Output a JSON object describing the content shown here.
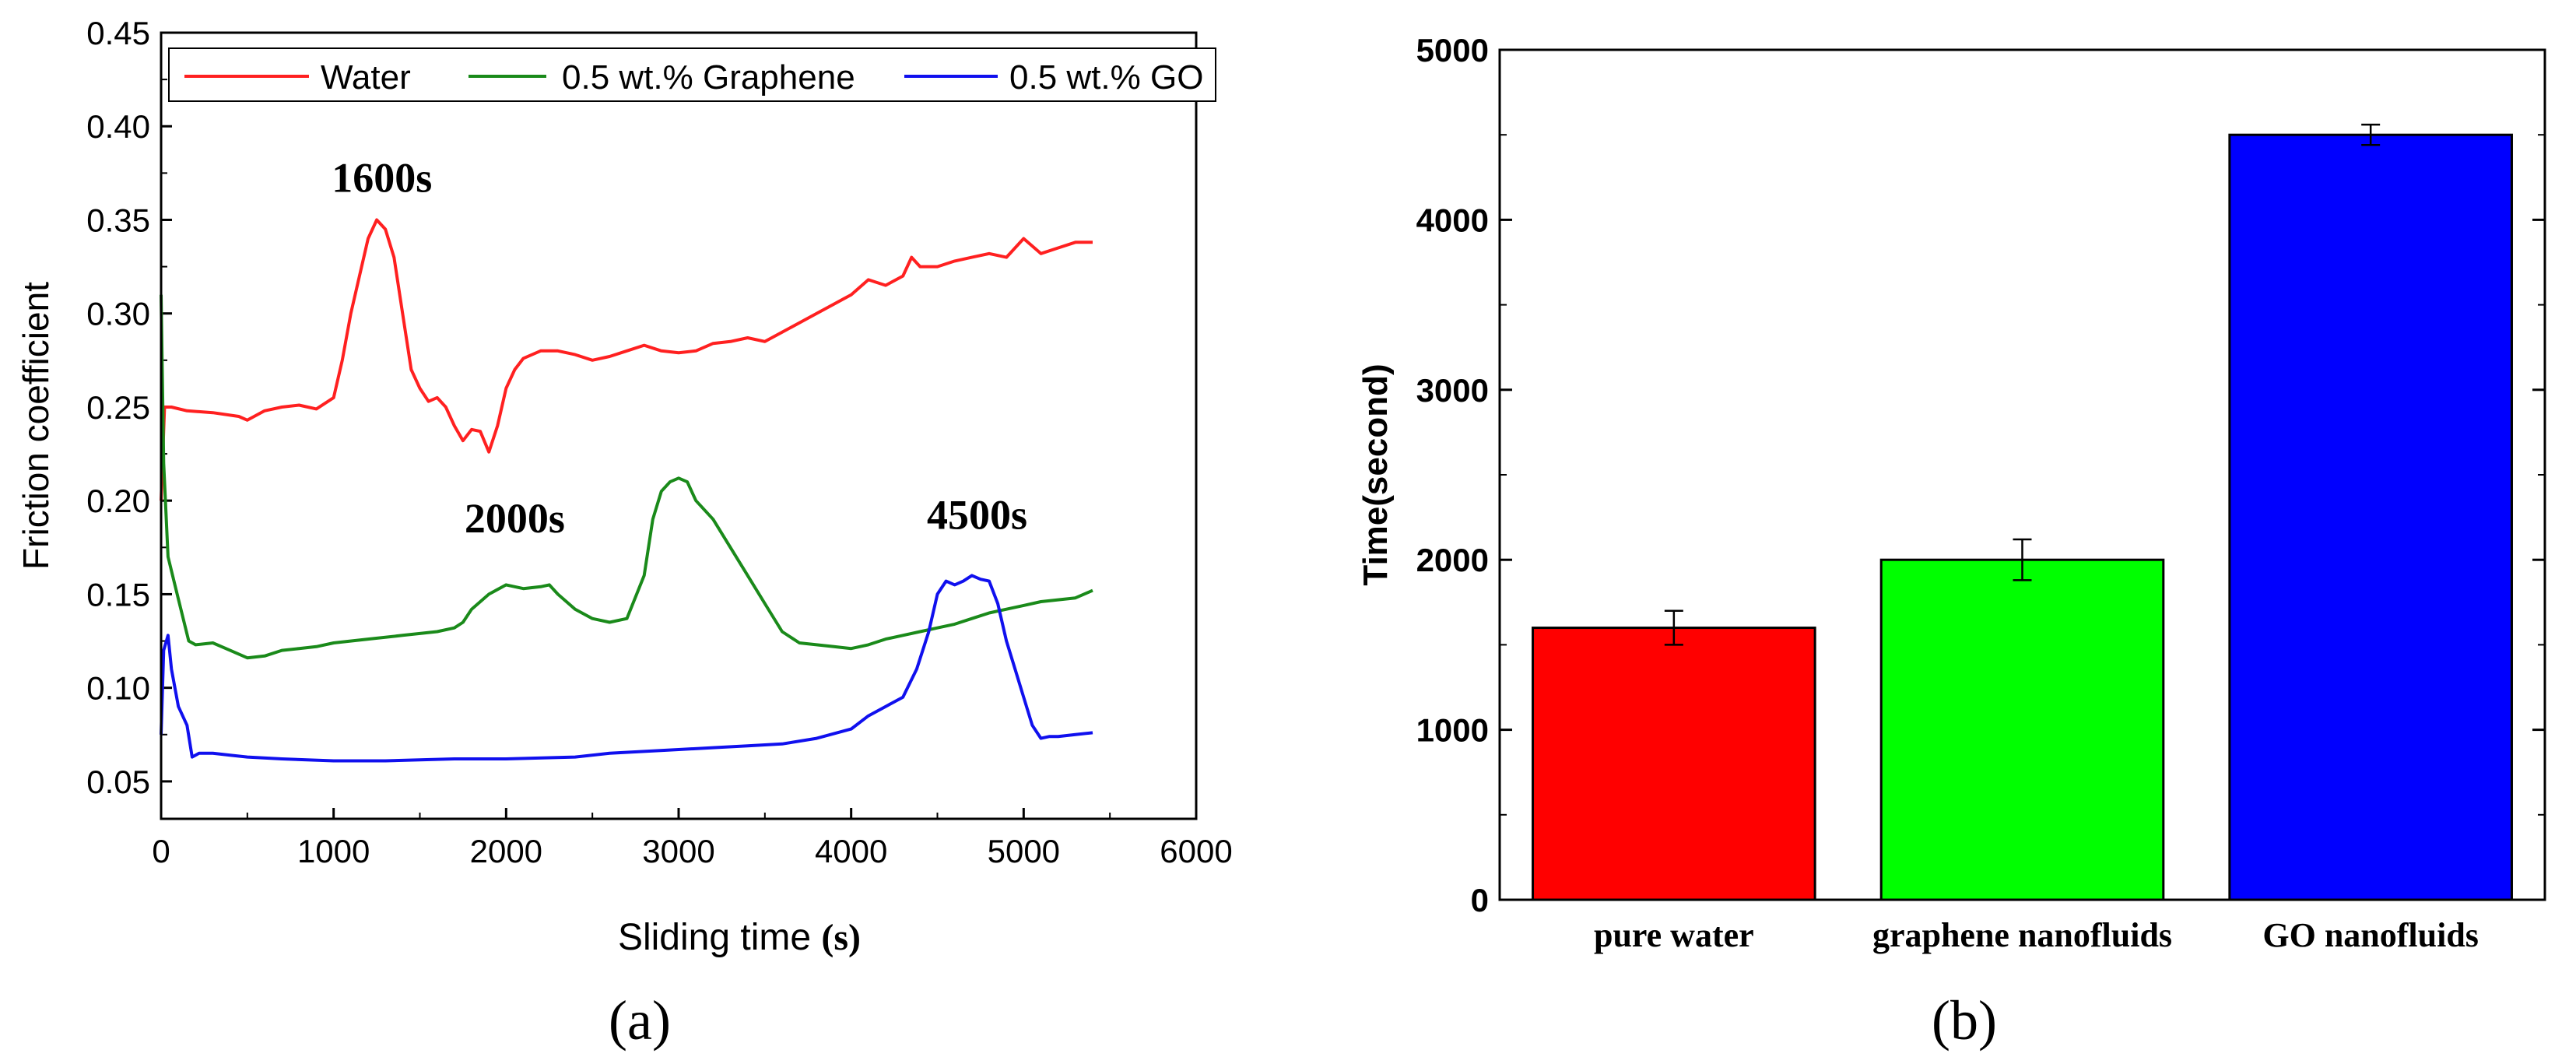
{
  "colors": {
    "water": "#ff2020",
    "graphene": "#1a8a1a",
    "go": "#1010ee",
    "bar_water": "#ff0000",
    "bar_graphene": "#00ff00",
    "bar_go": "#0000ff",
    "axis": "#000000"
  },
  "panels": {
    "a_label": "(a)",
    "b_label": "(b)"
  },
  "chart_data": [
    {
      "type": "line",
      "xlabel_main": "Sliding time ",
      "xlabel_unit": "(s)",
      "ylabel": "Friction coefficient",
      "xlim": [
        0,
        6000
      ],
      "ylim": [
        0.03,
        0.45
      ],
      "x_ticks": [
        0,
        1000,
        2000,
        3000,
        4000,
        5000,
        6000
      ],
      "x_tick_labels": [
        "0",
        "1000",
        "2000",
        "3000",
        "4000",
        "5000",
        "6000"
      ],
      "y_ticks": [
        0.05,
        0.1,
        0.15,
        0.2,
        0.25,
        0.3,
        0.35,
        0.4,
        0.45
      ],
      "y_tick_labels": [
        "0.05",
        "0.10",
        "0.15",
        "0.20",
        "0.25",
        "0.30",
        "0.35",
        "0.40",
        "0.45"
      ],
      "legend_position": "top",
      "series": [
        {
          "name": "Water",
          "x": [
            0,
            20,
            60,
            150,
            300,
            450,
            500,
            600,
            700,
            800,
            900,
            1000,
            1050,
            1100,
            1150,
            1200,
            1250,
            1300,
            1350,
            1400,
            1450,
            1500,
            1550,
            1600,
            1650,
            1700,
            1750,
            1800,
            1850,
            1900,
            1950,
            2000,
            2050,
            2100,
            2200,
            2300,
            2400,
            2500,
            2600,
            2700,
            2800,
            2900,
            3000,
            3100,
            3200,
            3300,
            3400,
            3500,
            3600,
            3700,
            3800,
            3900,
            4000,
            4100,
            4200,
            4300,
            4350,
            4400,
            4500,
            4600,
            4700,
            4800,
            4900,
            5000,
            5100,
            5200,
            5300,
            5400
          ],
          "y": [
            0.2,
            0.25,
            0.25,
            0.248,
            0.247,
            0.245,
            0.243,
            0.248,
            0.25,
            0.251,
            0.249,
            0.255,
            0.275,
            0.3,
            0.32,
            0.34,
            0.35,
            0.345,
            0.33,
            0.3,
            0.27,
            0.26,
            0.253,
            0.255,
            0.25,
            0.24,
            0.232,
            0.238,
            0.237,
            0.226,
            0.24,
            0.26,
            0.27,
            0.276,
            0.28,
            0.28,
            0.278,
            0.275,
            0.277,
            0.28,
            0.283,
            0.28,
            0.279,
            0.28,
            0.284,
            0.285,
            0.287,
            0.285,
            0.29,
            0.295,
            0.3,
            0.305,
            0.31,
            0.318,
            0.315,
            0.32,
            0.33,
            0.325,
            0.325,
            0.328,
            0.33,
            0.332,
            0.33,
            0.34,
            0.332,
            0.335,
            0.338,
            0.338
          ]
        },
        {
          "name": "0.5 wt.% Graphene",
          "x": [
            0,
            15,
            40,
            80,
            120,
            160,
            200,
            300,
            400,
            500,
            600,
            700,
            800,
            900,
            1000,
            1200,
            1400,
            1600,
            1700,
            1750,
            1800,
            1900,
            2000,
            2100,
            2200,
            2250,
            2300,
            2400,
            2500,
            2600,
            2700,
            2800,
            2850,
            2900,
            2950,
            3000,
            3050,
            3100,
            3200,
            3300,
            3400,
            3500,
            3600,
            3700,
            3800,
            3900,
            4000,
            4100,
            4200,
            4300,
            4400,
            4500,
            4600,
            4700,
            4800,
            4900,
            5000,
            5100,
            5200,
            5300,
            5400
          ],
          "y": [
            0.31,
            0.22,
            0.17,
            0.155,
            0.14,
            0.125,
            0.123,
            0.124,
            0.12,
            0.116,
            0.117,
            0.12,
            0.121,
            0.122,
            0.124,
            0.126,
            0.128,
            0.13,
            0.132,
            0.135,
            0.142,
            0.15,
            0.155,
            0.153,
            0.154,
            0.155,
            0.15,
            0.142,
            0.137,
            0.135,
            0.137,
            0.16,
            0.19,
            0.205,
            0.21,
            0.212,
            0.21,
            0.2,
            0.19,
            0.175,
            0.16,
            0.145,
            0.13,
            0.124,
            0.123,
            0.122,
            0.121,
            0.123,
            0.126,
            0.128,
            0.13,
            0.132,
            0.134,
            0.137,
            0.14,
            0.142,
            0.144,
            0.146,
            0.147,
            0.148,
            0.152
          ]
        },
        {
          "name": "0.5 wt.% GO",
          "x": [
            0,
            15,
            40,
            60,
            100,
            150,
            180,
            220,
            300,
            400,
            500,
            700,
            1000,
            1300,
            1700,
            2000,
            2400,
            2600,
            2800,
            3000,
            3200,
            3400,
            3600,
            3800,
            4000,
            4100,
            4200,
            4300,
            4380,
            4450,
            4500,
            4550,
            4600,
            4650,
            4700,
            4750,
            4800,
            4850,
            4900,
            4950,
            5000,
            5050,
            5100,
            5150,
            5200,
            5300,
            5400
          ],
          "y": [
            0.075,
            0.12,
            0.128,
            0.11,
            0.09,
            0.08,
            0.063,
            0.065,
            0.065,
            0.064,
            0.063,
            0.062,
            0.061,
            0.061,
            0.062,
            0.062,
            0.063,
            0.065,
            0.066,
            0.067,
            0.068,
            0.069,
            0.07,
            0.073,
            0.078,
            0.085,
            0.09,
            0.095,
            0.11,
            0.13,
            0.15,
            0.157,
            0.155,
            0.157,
            0.16,
            0.158,
            0.157,
            0.145,
            0.125,
            0.11,
            0.095,
            0.08,
            0.073,
            0.074,
            0.074,
            0.075,
            0.076
          ]
        }
      ],
      "annotations": [
        {
          "text": "1600s",
          "x": 1280,
          "y": 0.365
        },
        {
          "text": "2000s",
          "x": 2050,
          "y": 0.183
        },
        {
          "text": "4500s",
          "x": 4730,
          "y": 0.185
        }
      ]
    },
    {
      "type": "bar",
      "categories": [
        "pure water",
        "graphene nanofluids",
        "GO nanofluids"
      ],
      "values": [
        1600,
        2000,
        4500
      ],
      "errors": [
        100,
        120,
        60
      ],
      "ylabel": "Time(second)",
      "ylim": [
        0,
        5000
      ],
      "y_ticks": [
        0,
        1000,
        2000,
        3000,
        4000,
        5000
      ],
      "y_tick_labels": [
        "0",
        "1000",
        "2000",
        "3000",
        "4000",
        "5000"
      ]
    }
  ]
}
